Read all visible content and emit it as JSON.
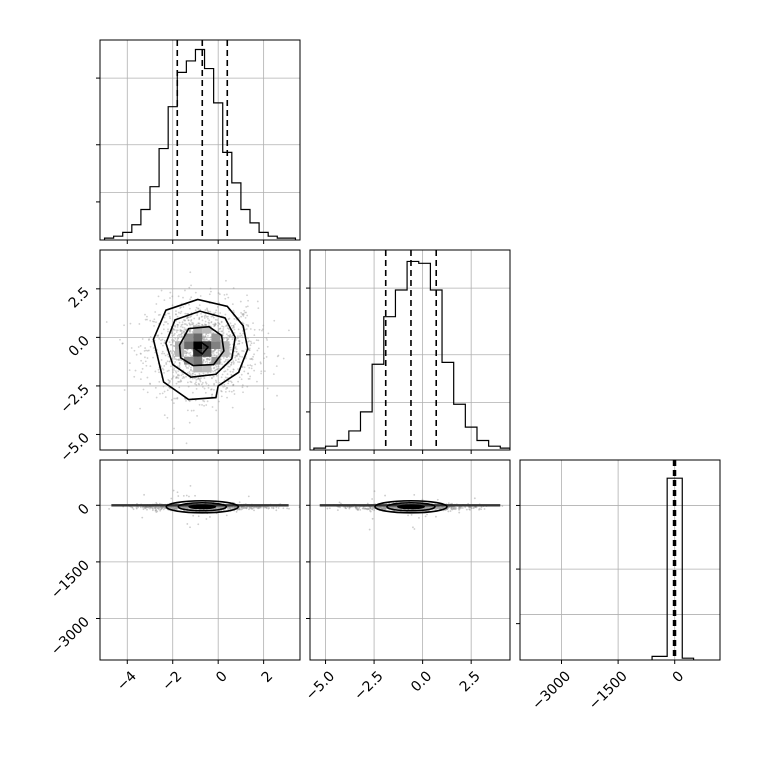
{
  "chart_data": {
    "type": "corner",
    "grid": true,
    "params": [
      {
        "xlim": [
          -5.2,
          3.6
        ],
        "hist_ylim": [
          0,
          1.05
        ],
        "ticks": [
          -4,
          -2,
          0,
          2
        ],
        "tick_labels": [
          "−4",
          "−2",
          "0",
          "2"
        ],
        "quantiles": [
          -1.8,
          -0.7,
          0.4
        ]
      },
      {
        "xlim": [
          -5.8,
          4.5
        ],
        "hist_ylim": [
          0,
          1.05
        ],
        "ticks": [
          -5.0,
          -2.5,
          0.0,
          2.5
        ],
        "tick_labels": [
          "−5.0",
          "−2.5",
          "0.0",
          "2.5"
        ],
        "quantiles": [
          -1.9,
          -0.6,
          0.7
        ]
      },
      {
        "xlim": [
          -4100,
          1200
        ],
        "hist_ylim": [
          0,
          1.1
        ],
        "ticks": [
          -3000,
          -1500,
          0
        ],
        "tick_labels": [
          "−3000",
          "−1500",
          "0"
        ],
        "quantiles": [
          -30,
          0,
          20
        ]
      }
    ],
    "hist1": {
      "bins": [
        -5.0,
        -4.6,
        -4.2,
        -3.8,
        -3.4,
        -3.0,
        -2.6,
        -2.2,
        -1.8,
        -1.4,
        -1.0,
        -0.6,
        -0.2,
        0.2,
        0.6,
        1.0,
        1.4,
        1.8,
        2.2,
        2.6,
        3.0,
        3.4
      ],
      "counts": [
        0.01,
        0.02,
        0.04,
        0.08,
        0.16,
        0.28,
        0.48,
        0.7,
        0.88,
        0.94,
        1.0,
        0.9,
        0.72,
        0.46,
        0.3,
        0.16,
        0.09,
        0.04,
        0.02,
        0.01,
        0.01
      ]
    },
    "hist2": {
      "bins": [
        -5.6,
        -5.0,
        -4.4,
        -3.8,
        -3.2,
        -2.6,
        -2.0,
        -1.4,
        -0.8,
        -0.2,
        0.4,
        1.0,
        1.6,
        2.2,
        2.8,
        3.4,
        4.0,
        4.5
      ],
      "counts": [
        0.01,
        0.02,
        0.05,
        0.1,
        0.2,
        0.45,
        0.7,
        0.84,
        0.99,
        0.98,
        0.84,
        0.46,
        0.24,
        0.12,
        0.05,
        0.02,
        0.01
      ]
    },
    "hist3": {
      "bins": [
        -600,
        -200,
        200,
        500
      ],
      "counts": [
        0.02,
        1.0,
        0.01
      ]
    },
    "scatter_12": {
      "center": [
        -0.7,
        -0.6
      ],
      "sd": [
        1.05,
        1.05
      ]
    },
    "density_12_cells": [
      {
        "x": -0.9,
        "y": -0.4,
        "v": 1.0
      },
      {
        "x": -0.5,
        "y": -0.4,
        "v": 0.75
      },
      {
        "x": -0.9,
        "y": -0.8,
        "v": 0.8
      },
      {
        "x": -0.5,
        "y": -0.8,
        "v": 0.65
      },
      {
        "x": -1.3,
        "y": -0.4,
        "v": 0.55
      },
      {
        "x": -0.1,
        "y": -0.4,
        "v": 0.45
      },
      {
        "x": -0.9,
        "y": 0.0,
        "v": 0.55
      },
      {
        "x": -0.9,
        "y": -1.2,
        "v": 0.5
      },
      {
        "x": -1.3,
        "y": -1.2,
        "v": 0.4
      },
      {
        "x": -0.1,
        "y": -1.2,
        "v": 0.35
      },
      {
        "x": -1.3,
        "y": 0.0,
        "v": 0.4
      },
      {
        "x": -0.1,
        "y": 0.0,
        "v": 0.35
      },
      {
        "x": -1.7,
        "y": -0.4,
        "v": 0.25
      },
      {
        "x": 0.3,
        "y": -0.4,
        "v": 0.22
      },
      {
        "x": -0.9,
        "y": 0.4,
        "v": 0.25
      },
      {
        "x": -0.9,
        "y": -1.6,
        "v": 0.22
      },
      {
        "x": -0.5,
        "y": 0.4,
        "v": 0.2
      },
      {
        "x": -0.5,
        "y": -1.6,
        "v": 0.2
      },
      {
        "x": -1.7,
        "y": -0.8,
        "v": 0.22
      },
      {
        "x": 0.3,
        "y": -0.8,
        "v": 0.2
      }
    ],
    "contours_12": [
      [
        [
          -1.05,
          -0.55
        ],
        [
          -0.75,
          -0.25
        ],
        [
          -0.45,
          -0.5
        ],
        [
          -0.7,
          -0.85
        ],
        [
          -1.05,
          -0.55
        ]
      ],
      [
        [
          -1.7,
          -0.4
        ],
        [
          -1.3,
          0.45
        ],
        [
          -0.4,
          0.55
        ],
        [
          0.15,
          0.1
        ],
        [
          0.25,
          -0.7
        ],
        [
          -0.2,
          -1.4
        ],
        [
          -1.1,
          -1.45
        ],
        [
          -1.65,
          -1.05
        ],
        [
          -1.7,
          -0.4
        ]
      ],
      [
        [
          -2.3,
          -0.3
        ],
        [
          -1.9,
          0.9
        ],
        [
          -0.8,
          1.35
        ],
        [
          0.3,
          1.0
        ],
        [
          0.75,
          0.0
        ],
        [
          0.6,
          -1.1
        ],
        [
          -0.1,
          -1.9
        ],
        [
          -1.2,
          -2.05
        ],
        [
          -2.0,
          -1.4
        ],
        [
          -2.3,
          -0.3
        ]
      ],
      [
        [
          -2.85,
          -0.1
        ],
        [
          -2.3,
          1.4
        ],
        [
          -0.9,
          1.95
        ],
        [
          0.4,
          1.6
        ],
        [
          1.1,
          0.6
        ],
        [
          1.3,
          -0.6
        ],
        [
          0.9,
          -1.8
        ],
        [
          0.0,
          -2.5
        ],
        [
          -0.1,
          -3.1
        ],
        [
          -1.3,
          -3.2
        ],
        [
          -2.4,
          -2.3
        ],
        [
          -2.85,
          -0.1
        ]
      ]
    ],
    "scatter_13": {
      "center_x": -0.7,
      "sd_x": 1.05,
      "y_center": -50,
      "y_sd": 80
    },
    "scatter_23": {
      "center_x": -0.6,
      "sd_x": 1.2,
      "y_center": -50,
      "y_sd": 80
    }
  }
}
